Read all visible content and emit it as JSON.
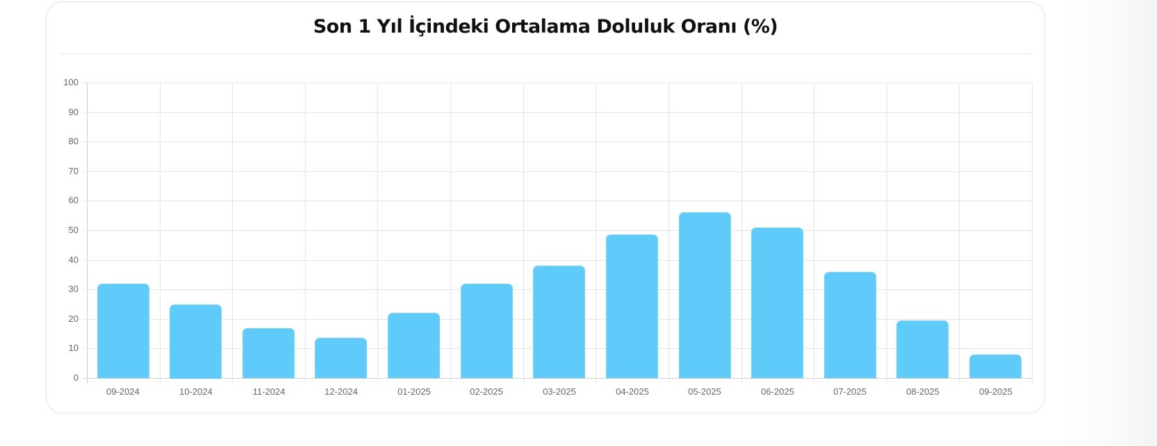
{
  "card": {
    "title": "Son 1 Yıl İçindeki Ortalama Doluluk Oranı (%)"
  },
  "colors": {
    "bar": "#5fcbfb",
    "grid": "#e5e5e5",
    "tick_text": "#666666",
    "title": "#111111"
  },
  "chart_data": {
    "type": "bar",
    "title": "Son 1 Yıl İçindeki Ortalama Doluluk Oranı (%)",
    "xlabel": "",
    "ylabel": "",
    "categories": [
      "09-2024",
      "10-2024",
      "11-2024",
      "12-2024",
      "01-2025",
      "02-2025",
      "03-2025",
      "04-2025",
      "05-2025",
      "06-2025",
      "07-2025",
      "08-2025",
      "09-2025"
    ],
    "values": [
      32,
      25,
      17,
      13.5,
      22,
      32,
      38,
      48.5,
      56,
      51,
      36,
      19.5,
      8
    ],
    "ylim": [
      0,
      100
    ],
    "yticks": [
      0,
      10,
      20,
      30,
      40,
      50,
      60,
      70,
      80,
      90,
      100
    ],
    "grid": true,
    "legend": "none"
  }
}
